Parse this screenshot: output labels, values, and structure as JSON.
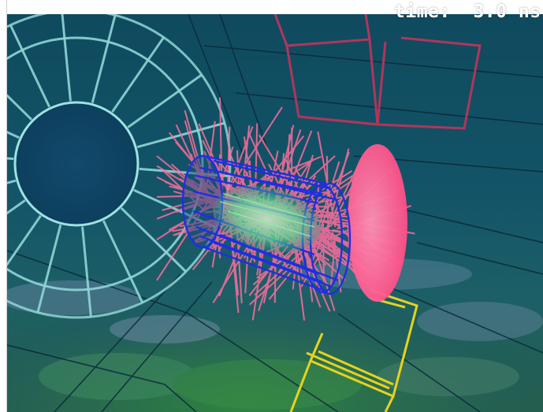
{
  "overlay": {
    "time_label": "time:",
    "time_value": "3.0 ns"
  },
  "scene": {
    "colors": {
      "background_dark": "#0e4a5c",
      "background_mid": "#1d5b6a",
      "floor_green": "#2f7a4a",
      "wheel": "#8fd6d6",
      "red_frame": "#c2345a",
      "yellow_frame": "#e6d21e",
      "detector_blue": "#1f2ee6",
      "particle_pink": "#ff6e9c",
      "core_green": "#8af2a4"
    },
    "icons": [
      "detector-wheel-icon",
      "particle-collision-icon"
    ]
  }
}
